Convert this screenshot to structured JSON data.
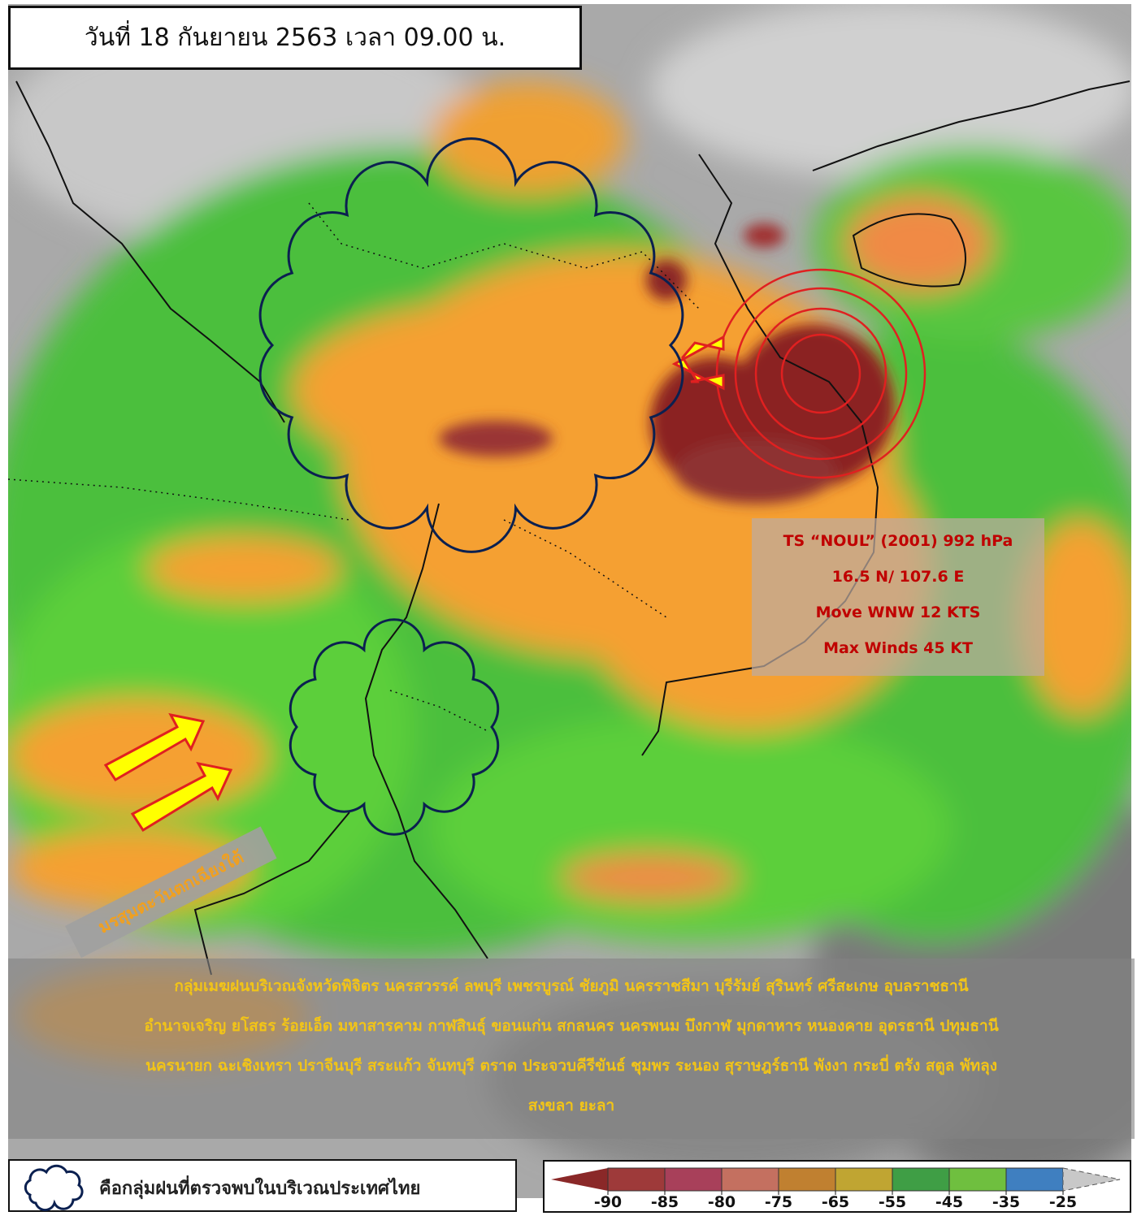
{
  "header": {
    "title": "วันที่ 18 กันยายน 2563 เวลา 09.00 น."
  },
  "storm": {
    "lines": [
      "TS “NOUL” (2001) 992 hPa",
      "16.5 N/ 107.6 E",
      "Move  WNW 12 KTS",
      "Max Winds 45 KT"
    ]
  },
  "monsoon": {
    "label": "มรสุมตะวันตกเฉียงใต้"
  },
  "description": {
    "lines": [
      "กลุ่มเมฆฝนบริเวณจังหวัดพิจิตร นครสวรรค์ ลพบุรี เพชรบูรณ์ ชัยภูมิ นครราชสีมา บุรีรัมย์ สุรินทร์ ศรีสะเกษ อุบลราชธานี",
      "อำนาจเจริญ ยโสธร ร้อยเอ็ด มหาสารคาม กาฬสินธุ์ ขอนแก่น สกลนคร นครพนม บึงกาฬ มุกดาหาร หนองคาย อุดรธานี ปทุมธานี",
      "นครนายก ฉะเชิงเทรา ปราจีนบุรี สระแก้ว จันทบุรี ตราด ประจวบคีรีขันธ์ ชุมพร ระนอง สุราษฎร์ธานี พังงา กระบี่ ตรัง สตูล พัทลุง",
      "สงขลา ยะลา"
    ]
  },
  "legend": {
    "label": "คือกลุ่มฝนที่ตรวจพบในบริเวณประเทศไทย"
  },
  "colorbar": {
    "ticks": [
      -90,
      -85,
      -80,
      -75,
      -65,
      -55,
      -45,
      -35,
      -25
    ],
    "colors": [
      "#8a2828",
      "#9e3a3a",
      "#a8405a",
      "#c47060",
      "#c08030",
      "#c0a532",
      "#3f9e45",
      "#6fbf3f",
      "#3f7fc0",
      "#c8c8c8"
    ]
  }
}
